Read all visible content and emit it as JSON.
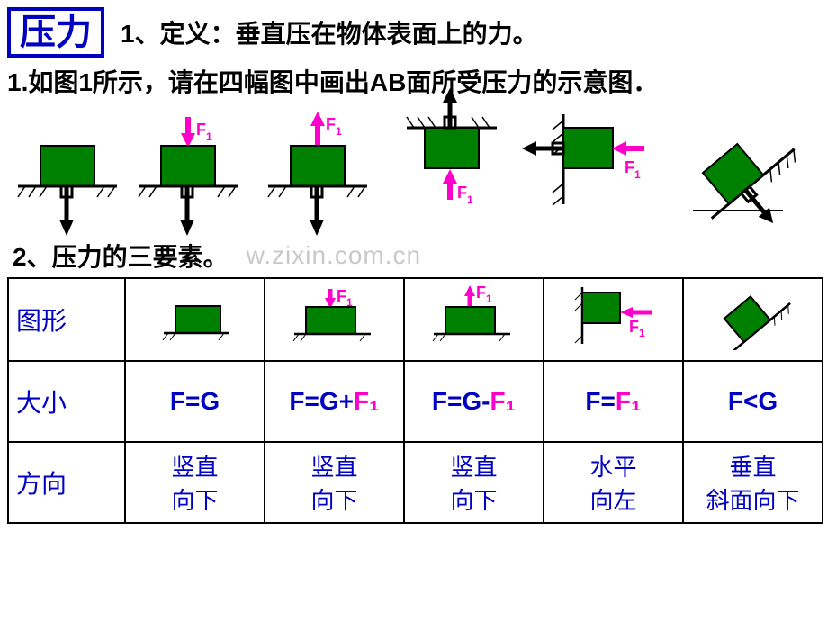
{
  "colors": {
    "blue": "#0000c0",
    "green": "#008000",
    "magenta": "#ff00cc",
    "black": "#000000",
    "gray": "#c9c9c9",
    "white": "#ffffff"
  },
  "title": "压力",
  "definition": "1、定义：垂直压在物体表面上的力。",
  "prompt": "1.如图1所示，请在四幅图中画出AB面所受压力的示意图．",
  "subhead": "2、压力的三要素。",
  "watermark": "w.zixin.com.cn",
  "f1_label": "F",
  "f1_sub": "1",
  "table": {
    "row_headers": [
      "图形",
      "大小",
      "方向"
    ],
    "size": {
      "c1": "F=G",
      "c2_pre": "F=G+",
      "c2_f1": "F₁",
      "c3_pre": "F=G-",
      "c3_f1": "F₁",
      "c4_pre": "F=",
      "c4_f1": "F₁",
      "c5": "F<G"
    },
    "dir": {
      "c1": "竖直向下",
      "c2": "竖直向下",
      "c3": "竖直向下",
      "c4": "水平向左",
      "c5": "垂直斜面向下"
    }
  }
}
